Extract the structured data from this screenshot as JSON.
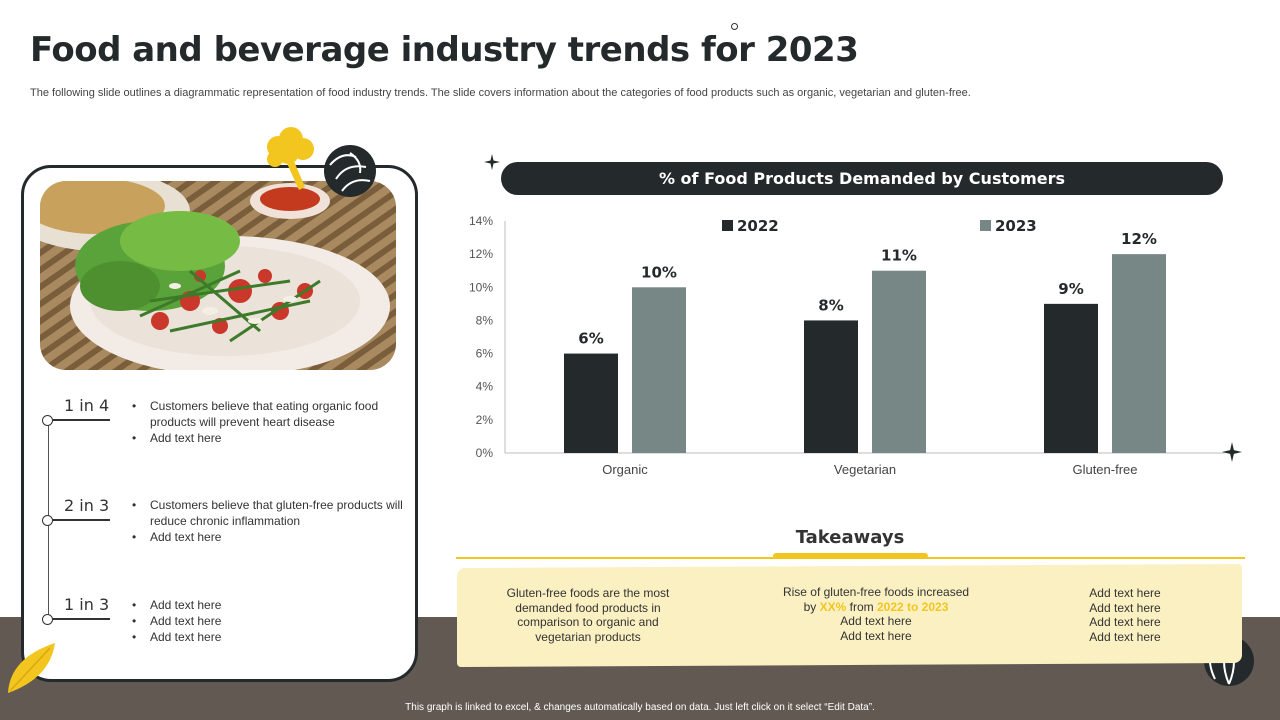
{
  "title": "Food and beverage industry trends for 2023",
  "subtitle": "The following slide outlines a diagrammatic representation of food industry trends. The slide covers information about the categories of food products such as organic, vegetarian and gluten-free.",
  "stats": [
    {
      "label": "1 in 4",
      "bullets": [
        "Customers believe  that eating organic food products will prevent  heart disease",
        "Add text here"
      ]
    },
    {
      "label": "2 in 3",
      "bullets": [
        "Customers believe  that gluten-free products will reduce chronic inflammation",
        "Add text here"
      ]
    },
    {
      "label": "1 in 3",
      "bullets": [
        "Add text here",
        "Add text here",
        "Add text here"
      ]
    }
  ],
  "chart_data": {
    "type": "bar",
    "title": "% of Food Products Demanded by Customers",
    "categories": [
      "Organic",
      "Vegetarian",
      "Gluten-free"
    ],
    "series": [
      {
        "name": "2022",
        "values": [
          6,
          8,
          9
        ],
        "color": "#242a2b"
      },
      {
        "name": "2023",
        "values": [
          10,
          11,
          12
        ],
        "color": "#778786"
      }
    ],
    "ylim": [
      0,
      14
    ],
    "yticks": [
      0,
      2,
      4,
      6,
      8,
      10,
      12,
      14
    ],
    "tick_suffix": "%",
    "legend": "top",
    "grid": false
  },
  "takeaways": {
    "title": "Takeaways",
    "col1": [
      "Gluten-free foods are the most",
      "demanded food products in",
      "comparison to organic and",
      "vegetarian products"
    ],
    "col2": {
      "line1": "Rise of gluten-free foods increased",
      "by": "by ",
      "pct": "XX%",
      "from": " from ",
      "years": "2022 to 2023",
      "rest": [
        "Add text here",
        "Add text here"
      ]
    },
    "col3": [
      "Add text here",
      "Add text here",
      "Add text here",
      "Add text here"
    ]
  },
  "footer": "This graph is linked to excel, & changes automatically based on data. Just left click on it select “Edit Data”.",
  "colors": {
    "dark": "#242a2b",
    "gray": "#778786",
    "accent": "#f2c61f",
    "band": "#625a52",
    "takeaway_bg": "#fbf0c2"
  },
  "icons": [
    "broccoli-icon",
    "cabbage-icon",
    "leaf-icon",
    "seed-icon",
    "sparkle-icon"
  ]
}
